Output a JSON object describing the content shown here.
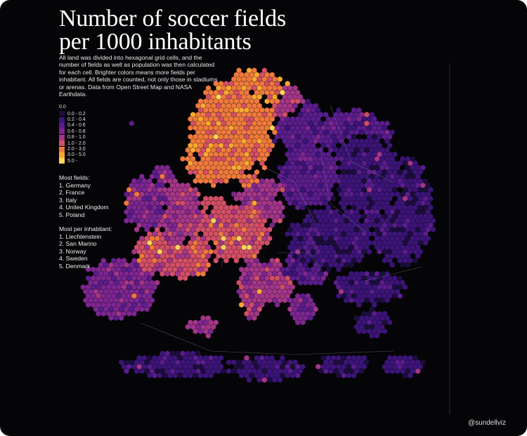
{
  "title_line1": "Number of soccer fields",
  "title_line2": "per 1000 inhabitants",
  "subtitle": "All land was divided into hexagonal grid cells, and the number of fields as well as population was then calculated for each cell. Brighter colors means more fields per inhabitant. All fields are counted, not only those in stadiums or arenas. Data from Open Street Map and NASA Earthdata.",
  "legend": {
    "header": "0.0",
    "items": [
      {
        "label": "0.0 - 0.2",
        "color": "#1b0e3c"
      },
      {
        "label": "0.2 - 0.4",
        "color": "#3c1478"
      },
      {
        "label": "0.4 - 0.6",
        "color": "#5a1d8c"
      },
      {
        "label": "0.6 - 0.8",
        "color": "#7d2690"
      },
      {
        "label": "0.8 - 1.0",
        "color": "#a33688"
      },
      {
        "label": "1.0 - 2.0",
        "color": "#d24f66"
      },
      {
        "label": "2.0 - 3.0",
        "color": "#ef7a3c"
      },
      {
        "label": "3.0 - 5.0",
        "color": "#f9a830"
      },
      {
        "label": "5.0 -",
        "color": "#fbd75a"
      }
    ]
  },
  "most_fields": {
    "heading": "Most fields:",
    "items": [
      "1. Germany",
      "2. France",
      "3. Italy",
      "4. United Kingdom",
      "5. Poland"
    ]
  },
  "most_per_inhabitant": {
    "heading": "Most per inhabitant:",
    "items": [
      "1. Liechtenstein",
      "2. San Marino",
      "3. Norway",
      "4. Sweden",
      "5. Denmark"
    ]
  },
  "credit": "@sundellviz",
  "colors": {
    "background": "#050407",
    "border_lines": "#8a8497"
  }
}
